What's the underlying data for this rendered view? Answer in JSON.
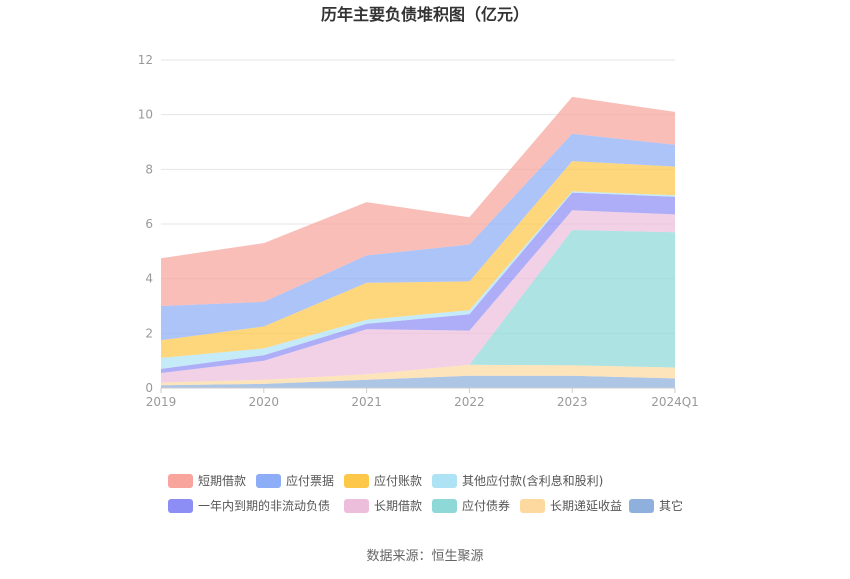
{
  "chart_data": {
    "type": "area",
    "stacked": true,
    "title": "历年主要负债堆积图（亿元）",
    "x": [
      "2019",
      "2020",
      "2021",
      "2022",
      "2023",
      "2024Q1"
    ],
    "y_ticks": [
      0,
      2,
      4,
      6,
      8,
      10,
      12
    ],
    "ylim": [
      0,
      12
    ],
    "grid": "horizontal",
    "legend_position": "bottom",
    "series": [
      {
        "name": "其它",
        "color": "#8fb0dc",
        "values": [
          0.1,
          0.15,
          0.3,
          0.45,
          0.45,
          0.35
        ]
      },
      {
        "name": "长期递延收益",
        "color": "#fdd9a0",
        "values": [
          0.1,
          0.15,
          0.2,
          0.4,
          0.38,
          0.4
        ]
      },
      {
        "name": "应付债券",
        "color": "#8ed8d8",
        "values": [
          0.0,
          0.0,
          0.0,
          0.0,
          4.95,
          4.95
        ]
      },
      {
        "name": "长期借款",
        "color": "#edbedb",
        "values": [
          0.35,
          0.7,
          1.65,
          1.25,
          0.72,
          0.65
        ]
      },
      {
        "name": "一年内到期的非流动负债",
        "color": "#8d8ef5",
        "values": [
          0.15,
          0.2,
          0.2,
          0.6,
          0.65,
          0.65
        ]
      },
      {
        "name": "其他应付款(含利息和股利)",
        "color": "#aee3f5",
        "values": [
          0.4,
          0.25,
          0.15,
          0.15,
          0.05,
          0.05
        ]
      },
      {
        "name": "应付账款",
        "color": "#fdc84a",
        "values": [
          0.65,
          0.8,
          1.35,
          1.05,
          1.1,
          1.05
        ]
      },
      {
        "name": "应付票据",
        "color": "#8eadf7",
        "values": [
          1.25,
          0.9,
          1.0,
          1.35,
          1.0,
          0.8
        ]
      },
      {
        "name": "短期借款",
        "color": "#f7a59d",
        "values": [
          1.75,
          2.15,
          1.95,
          1.0,
          1.35,
          1.2
        ]
      }
    ],
    "legend_order": [
      "短期借款",
      "应付票据",
      "应付账款",
      "其他应付款(含利息和股利)",
      "一年内到期的非流动负债",
      "长期借款",
      "应付债券",
      "长期递延收益",
      "其它"
    ]
  },
  "source_note": "数据来源：恒生聚源",
  "colors": {
    "axis": "#cccccc",
    "grid": "#e6e6e6",
    "tick_text": "#999999",
    "title": "#333333",
    "legend_text": "#555555",
    "source_text": "#666666"
  }
}
